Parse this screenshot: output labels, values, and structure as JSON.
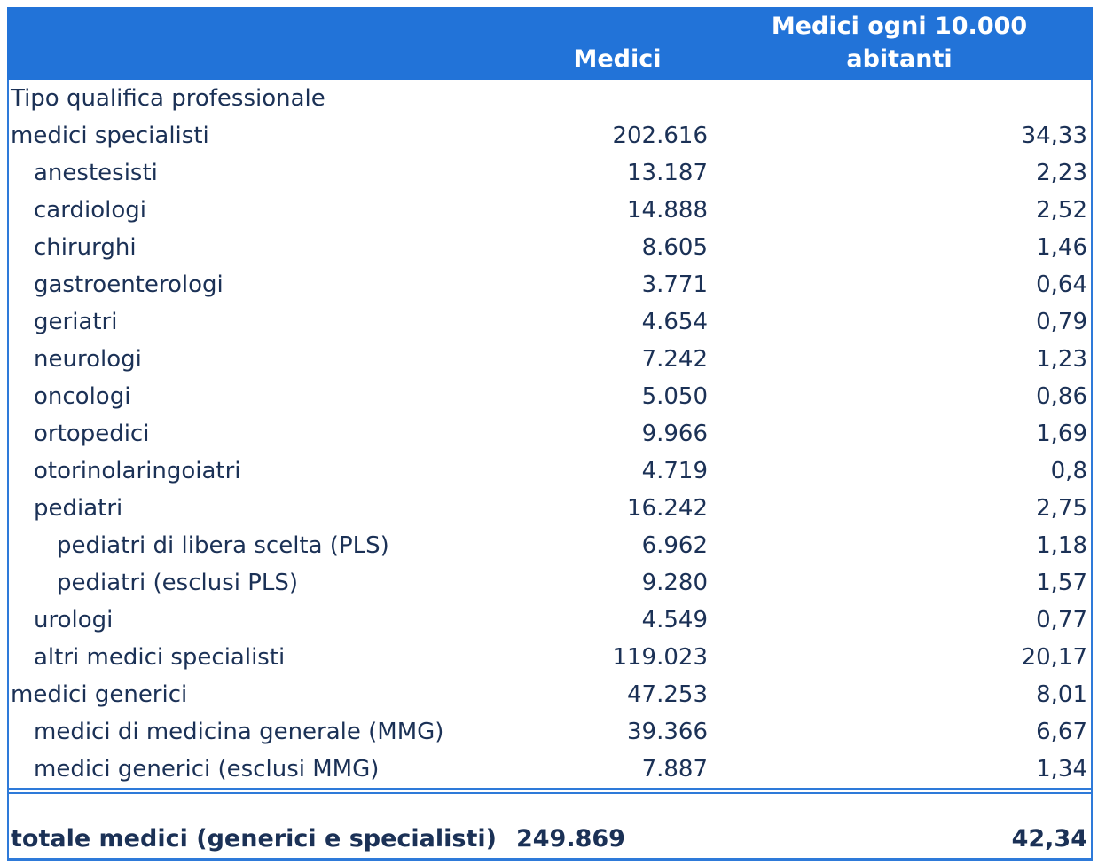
{
  "header": {
    "col_medici": "Medici",
    "col_ratio_line1": "Medici ogni 10.000",
    "col_ratio_line2": "abitanti"
  },
  "rows": [
    {
      "label": "Tipo qualifica professionale",
      "medici": "",
      "ratio": "",
      "indent": 0
    },
    {
      "label": "medici specialisti",
      "medici": "202.616",
      "ratio": "34,33",
      "indent": 0
    },
    {
      "label": "anestesisti",
      "medici": "13.187",
      "ratio": "2,23",
      "indent": 1
    },
    {
      "label": "cardiologi",
      "medici": "14.888",
      "ratio": "2,52",
      "indent": 1
    },
    {
      "label": "chirurghi",
      "medici": "8.605",
      "ratio": "1,46",
      "indent": 1
    },
    {
      "label": "gastroenterologi",
      "medici": "3.771",
      "ratio": "0,64",
      "indent": 1
    },
    {
      "label": "geriatri",
      "medici": "4.654",
      "ratio": "0,79",
      "indent": 1
    },
    {
      "label": "neurologi",
      "medici": "7.242",
      "ratio": "1,23",
      "indent": 1
    },
    {
      "label": "oncologi",
      "medici": "5.050",
      "ratio": "0,86",
      "indent": 1
    },
    {
      "label": "ortopedici",
      "medici": "9.966",
      "ratio": "1,69",
      "indent": 1
    },
    {
      "label": "otorinolaringoiatri",
      "medici": "4.719",
      "ratio": "0,8",
      "indent": 1
    },
    {
      "label": "pediatri",
      "medici": "16.242",
      "ratio": "2,75",
      "indent": 1
    },
    {
      "label": "pediatri di libera scelta (PLS)",
      "medici": "6.962",
      "ratio": "1,18",
      "indent": 2
    },
    {
      "label": "pediatri (esclusi PLS)",
      "medici": "9.280",
      "ratio": "1,57",
      "indent": 2
    },
    {
      "label": "urologi",
      "medici": "4.549",
      "ratio": "0,77",
      "indent": 1
    },
    {
      "label": "altri medici specialisti",
      "medici": "119.023",
      "ratio": "20,17",
      "indent": 1
    },
    {
      "label": "medici generici",
      "medici": "47.253",
      "ratio": "8,01",
      "indent": 0
    },
    {
      "label": "medici di medicina generale (MMG)",
      "medici": "39.366",
      "ratio": "6,67",
      "indent": 1
    },
    {
      "label": "medici generici (esclusi MMG)",
      "medici": "7.887",
      "ratio": "1,34",
      "indent": 1
    }
  ],
  "total": {
    "label": "totale medici (generici e specialisti)",
    "medici": "249.869",
    "ratio": "42,34"
  },
  "colors": {
    "header_bg": "#2273d8",
    "border_blue": "#2e7ad9",
    "text_navy": "#1b3156",
    "header_text": "#ffffff"
  }
}
